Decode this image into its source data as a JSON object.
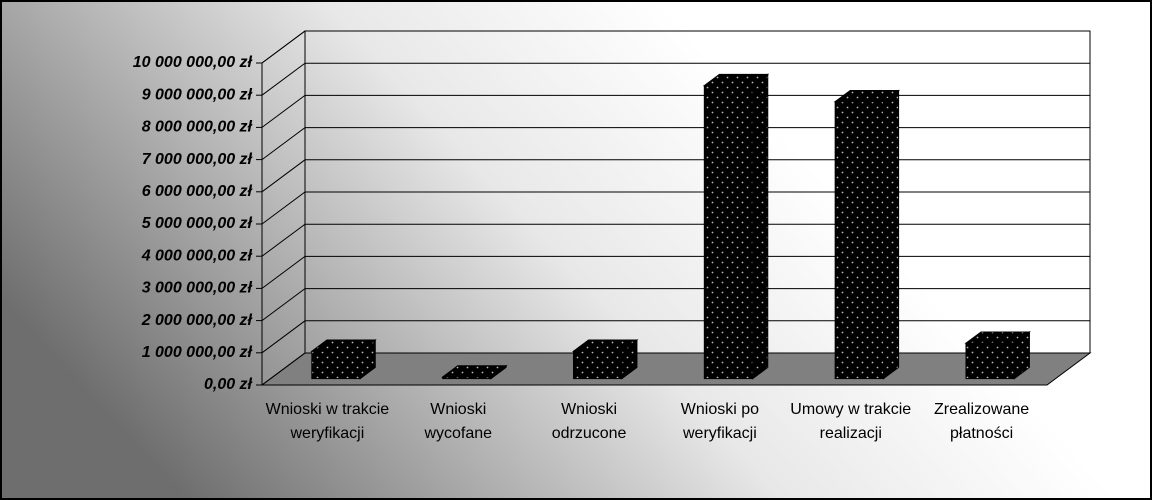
{
  "chart_data": {
    "type": "bar3d",
    "categories": [
      "Wnioski w trakcie weryfikacji",
      "Wnioski wycofane",
      "Wnioski odrzucone",
      "Wnioski po weryfikacji",
      "Umowy w trakcie realizacji",
      "Zrealizowane płatności"
    ],
    "values": [
      850000,
      50000,
      850000,
      9100000,
      8600000,
      1100000
    ],
    "color": "#000000",
    "floor_color": "#808080",
    "ylim": [
      0,
      10000000
    ],
    "yticks": [
      {
        "value": 0,
        "label": "0,00 zł"
      },
      {
        "value": 1000000,
        "label": "1 000 000,00 zł"
      },
      {
        "value": 2000000,
        "label": "2 000 000,00 zł"
      },
      {
        "value": 3000000,
        "label": "3 000 000,00 zł"
      },
      {
        "value": 4000000,
        "label": "4 000 000,00 zł"
      },
      {
        "value": 5000000,
        "label": "5 000 000,00 zł"
      },
      {
        "value": 6000000,
        "label": "6 000 000,00 zł"
      },
      {
        "value": 7000000,
        "label": "7 000 000,00 zł"
      },
      {
        "value": 8000000,
        "label": "8 000 000,00 zł"
      },
      {
        "value": 9000000,
        "label": "9 000 000,00 zł"
      },
      {
        "value": 10000000,
        "label": "10 000 000,00 zł"
      }
    ],
    "grid": true
  }
}
